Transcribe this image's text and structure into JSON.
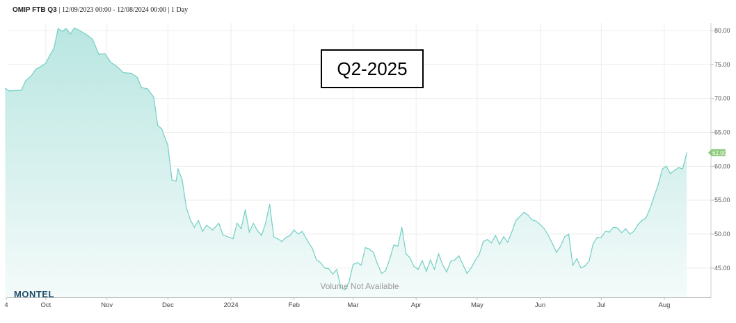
{
  "header": {
    "symbol": "OMIP FTB Q3",
    "range": "| 12/09/2023 00:00 - 12/08/2024 00:00 | 1 Day"
  },
  "annotation": "Q2-2025",
  "watermark": "Volume Not Available",
  "brand": "MONTEL",
  "colors": {
    "line": "#72cfc4",
    "fill_top": "#b9e6e1",
    "fill_bottom": "#f4fbfa",
    "last_badge": "#8cc97a",
    "grid": "#ececec"
  },
  "chart_data": {
    "type": "area",
    "title": "OMIP FTB Q3",
    "ylim": [
      40.5,
      81
    ],
    "grid": true,
    "y_ticks": [
      "80.00",
      "75.00",
      "70.00",
      "65.00",
      "60.00",
      "55.00",
      "50.00",
      "45.00"
    ],
    "x_labels": [
      {
        "label": "4",
        "date": "2023-09-12"
      },
      {
        "label": "Oct",
        "date": "2023-10-02"
      },
      {
        "label": "Nov",
        "date": "2023-11-01"
      },
      {
        "label": "Dec",
        "date": "2023-12-01"
      },
      {
        "label": "2024",
        "date": "2024-01-01"
      },
      {
        "label": "Feb",
        "date": "2024-02-01"
      },
      {
        "label": "Mar",
        "date": "2024-03-01"
      },
      {
        "label": "Apr",
        "date": "2024-04-01"
      },
      {
        "label": "May",
        "date": "2024-05-01"
      },
      {
        "label": "Jun",
        "date": "2024-06-01"
      },
      {
        "label": "Jul",
        "date": "2024-07-01"
      },
      {
        "label": "Aug",
        "date": "2024-08-01"
      }
    ],
    "last_value": "62.00",
    "series": [
      {
        "values": [
          [
            "2023-09-12",
            71.5
          ],
          [
            "2023-09-14",
            71.1
          ],
          [
            "2023-09-20",
            71.2
          ],
          [
            "2023-09-22",
            72.6
          ],
          [
            "2023-09-25",
            73.4
          ],
          [
            "2023-09-27",
            74.3
          ],
          [
            "2023-09-29",
            74.6
          ],
          [
            "2023-10-02",
            75.2
          ],
          [
            "2023-10-04",
            76.4
          ],
          [
            "2023-10-06",
            77.4
          ],
          [
            "2023-10-08",
            80.3
          ],
          [
            "2023-10-10",
            79.9
          ],
          [
            "2023-10-12",
            80.3
          ],
          [
            "2023-10-14",
            79.5
          ],
          [
            "2023-10-16",
            80.4
          ],
          [
            "2023-10-18",
            80.1
          ],
          [
            "2023-10-22",
            79.4
          ],
          [
            "2023-10-25",
            78.7
          ],
          [
            "2023-10-28",
            76.5
          ],
          [
            "2023-10-31",
            76.6
          ],
          [
            "2023-11-03",
            75.3
          ],
          [
            "2023-11-06",
            74.7
          ],
          [
            "2023-11-09",
            73.8
          ],
          [
            "2023-11-13",
            73.7
          ],
          [
            "2023-11-16",
            73.1
          ],
          [
            "2023-11-18",
            71.6
          ],
          [
            "2023-11-21",
            71.4
          ],
          [
            "2023-11-24",
            70.2
          ],
          [
            "2023-11-26",
            66.0
          ],
          [
            "2023-11-28",
            65.5
          ],
          [
            "2023-12-01",
            63.0
          ],
          [
            "2023-12-03",
            58.0
          ],
          [
            "2023-12-05",
            57.8
          ],
          [
            "2023-12-06",
            59.6
          ],
          [
            "2023-12-08",
            58.0
          ],
          [
            "2023-12-10",
            54.0
          ],
          [
            "2023-12-12",
            52.1
          ],
          [
            "2023-12-14",
            51.0
          ],
          [
            "2023-12-16",
            52.0
          ],
          [
            "2023-12-18",
            50.4
          ],
          [
            "2023-12-20",
            51.3
          ],
          [
            "2023-12-23",
            50.6
          ],
          [
            "2023-12-26",
            51.6
          ],
          [
            "2023-12-28",
            49.9
          ],
          [
            "2024-01-02",
            49.3
          ],
          [
            "2024-01-04",
            51.6
          ],
          [
            "2024-01-06",
            50.8
          ],
          [
            "2024-01-08",
            53.6
          ],
          [
            "2024-01-10",
            50.3
          ],
          [
            "2024-01-12",
            51.6
          ],
          [
            "2024-01-14",
            50.5
          ],
          [
            "2024-01-16",
            49.8
          ],
          [
            "2024-01-18",
            51.6
          ],
          [
            "2024-01-20",
            54.4
          ],
          [
            "2024-01-22",
            49.6
          ],
          [
            "2024-01-24",
            49.3
          ],
          [
            "2024-01-26",
            48.9
          ],
          [
            "2024-01-28",
            49.5
          ],
          [
            "2024-01-30",
            49.8
          ],
          [
            "2024-02-01",
            50.6
          ],
          [
            "2024-02-03",
            50.0
          ],
          [
            "2024-02-05",
            50.4
          ],
          [
            "2024-02-08",
            48.8
          ],
          [
            "2024-02-10",
            47.9
          ],
          [
            "2024-02-12",
            46.2
          ],
          [
            "2024-02-14",
            45.8
          ],
          [
            "2024-02-16",
            45.0
          ],
          [
            "2024-02-18",
            44.9
          ],
          [
            "2024-02-20",
            44.1
          ],
          [
            "2024-02-22",
            44.8
          ],
          [
            "2024-02-24",
            42.1
          ],
          [
            "2024-02-26",
            41.8
          ],
          [
            "2024-02-28",
            42.9
          ],
          [
            "2024-03-01",
            45.5
          ],
          [
            "2024-03-03",
            45.8
          ],
          [
            "2024-03-05",
            45.4
          ],
          [
            "2024-03-07",
            48.0
          ],
          [
            "2024-03-09",
            47.8
          ],
          [
            "2024-03-11",
            47.3
          ],
          [
            "2024-03-13",
            45.6
          ],
          [
            "2024-03-15",
            44.2
          ],
          [
            "2024-03-17",
            44.6
          ],
          [
            "2024-03-19",
            46.3
          ],
          [
            "2024-03-21",
            48.4
          ],
          [
            "2024-03-23",
            48.2
          ],
          [
            "2024-03-25",
            51.0
          ],
          [
            "2024-03-27",
            47.1
          ],
          [
            "2024-03-29",
            46.5
          ],
          [
            "2024-03-31",
            45.2
          ],
          [
            "2024-04-02",
            44.8
          ],
          [
            "2024-04-04",
            46.1
          ],
          [
            "2024-04-06",
            44.5
          ],
          [
            "2024-04-08",
            46.2
          ],
          [
            "2024-04-10",
            44.8
          ],
          [
            "2024-04-12",
            47.1
          ],
          [
            "2024-04-14",
            45.5
          ],
          [
            "2024-04-16",
            44.4
          ],
          [
            "2024-04-18",
            46.0
          ],
          [
            "2024-04-20",
            46.2
          ],
          [
            "2024-04-22",
            46.8
          ],
          [
            "2024-04-24",
            45.5
          ],
          [
            "2024-04-26",
            44.2
          ],
          [
            "2024-04-28",
            45.0
          ],
          [
            "2024-04-30",
            46.1
          ],
          [
            "2024-05-02",
            47.0
          ],
          [
            "2024-05-04",
            48.9
          ],
          [
            "2024-05-06",
            49.2
          ],
          [
            "2024-05-08",
            48.7
          ],
          [
            "2024-05-10",
            49.8
          ],
          [
            "2024-05-12",
            48.5
          ],
          [
            "2024-05-14",
            49.6
          ],
          [
            "2024-05-16",
            48.8
          ],
          [
            "2024-05-18",
            50.3
          ],
          [
            "2024-05-20",
            52.0
          ],
          [
            "2024-05-22",
            52.6
          ],
          [
            "2024-05-24",
            53.2
          ],
          [
            "2024-05-26",
            52.8
          ],
          [
            "2024-05-28",
            52.1
          ],
          [
            "2024-05-30",
            51.9
          ],
          [
            "2024-06-01",
            51.4
          ],
          [
            "2024-06-03",
            50.8
          ],
          [
            "2024-06-05",
            49.8
          ],
          [
            "2024-06-07",
            48.6
          ],
          [
            "2024-06-09",
            47.3
          ],
          [
            "2024-06-11",
            48.2
          ],
          [
            "2024-06-13",
            49.6
          ],
          [
            "2024-06-15",
            50.0
          ],
          [
            "2024-06-17",
            45.4
          ],
          [
            "2024-06-19",
            46.4
          ],
          [
            "2024-06-21",
            45.0
          ],
          [
            "2024-06-23",
            45.3
          ],
          [
            "2024-06-25",
            46.0
          ],
          [
            "2024-06-27",
            48.6
          ],
          [
            "2024-06-29",
            49.5
          ],
          [
            "2024-07-01",
            49.5
          ],
          [
            "2024-07-03",
            50.4
          ],
          [
            "2024-07-05",
            50.3
          ],
          [
            "2024-07-07",
            51.0
          ],
          [
            "2024-07-09",
            50.9
          ],
          [
            "2024-07-11",
            50.2
          ],
          [
            "2024-07-13",
            50.8
          ],
          [
            "2024-07-15",
            50.0
          ],
          [
            "2024-07-17",
            50.4
          ],
          [
            "2024-07-19",
            51.4
          ],
          [
            "2024-07-21",
            52.0
          ],
          [
            "2024-07-23",
            52.4
          ],
          [
            "2024-07-25",
            53.8
          ],
          [
            "2024-07-27",
            55.6
          ],
          [
            "2024-07-29",
            57.3
          ],
          [
            "2024-07-31",
            59.6
          ],
          [
            "2024-08-02",
            60.0
          ],
          [
            "2024-08-04",
            58.9
          ],
          [
            "2024-08-06",
            59.4
          ],
          [
            "2024-08-08",
            59.8
          ],
          [
            "2024-08-10",
            59.6
          ],
          [
            "2024-08-12",
            62.0
          ]
        ]
      }
    ]
  }
}
